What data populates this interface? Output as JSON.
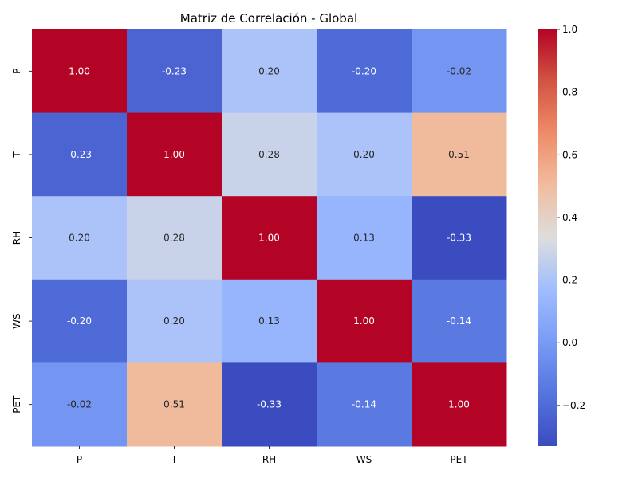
{
  "chart_data": {
    "type": "heatmap",
    "title": "Matriz de Correlación - Global",
    "x_categories": [
      "P",
      "T",
      "RH",
      "WS",
      "PET"
    ],
    "y_categories": [
      "P",
      "T",
      "RH",
      "WS",
      "PET"
    ],
    "values": [
      [
        1.0,
        -0.23,
        0.2,
        -0.2,
        -0.02
      ],
      [
        -0.23,
        1.0,
        0.28,
        0.2,
        0.51
      ],
      [
        0.2,
        0.28,
        1.0,
        0.13,
        -0.33
      ],
      [
        -0.2,
        0.2,
        0.13,
        1.0,
        -0.14
      ],
      [
        -0.02,
        0.51,
        -0.33,
        -0.14,
        1.0
      ]
    ],
    "value_format": "0.00",
    "colormap": "coolwarm",
    "color_range": [
      -0.33,
      1.0
    ],
    "colorbar_ticks": [
      "1.0",
      "0.8",
      "0.6",
      "0.4",
      "0.2",
      "0.0",
      "−0.2"
    ],
    "colorbar_tick_values": [
      1.0,
      0.8,
      0.6,
      0.4,
      0.2,
      0.0,
      -0.2
    ]
  }
}
